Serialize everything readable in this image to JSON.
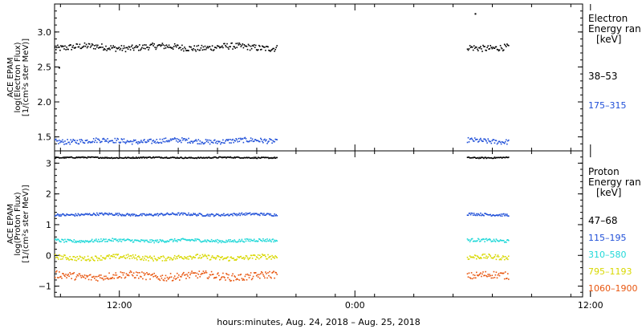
{
  "chart_data": [
    {
      "type": "scatter",
      "panel": "electron",
      "ylabel_lines": [
        "ACE EPAM",
        "log(Electron Flux)",
        "[1/(cm²s ster MeV)]"
      ],
      "ylim": [
        1.3,
        3.4
      ],
      "yticks": [
        1.5,
        2.0,
        2.5,
        3.0
      ],
      "ytick_labels": [
        "1.5",
        "2.0",
        "2.5",
        "3.0"
      ],
      "legend_title_lines": [
        "Electron",
        "Energy ran",
        "[keV]"
      ],
      "series": [
        {
          "name": "38–53",
          "color": "#000000",
          "level": 2.79,
          "spread": 0.045
        },
        {
          "name": "175–315",
          "color": "#1f4fd8",
          "level": 1.45,
          "spread": 0.035
        }
      ],
      "outliers": [
        {
          "x_hours": 8.9,
          "y": 2.5
        },
        {
          "x_hours": 30.1,
          "y": 3.27
        }
      ]
    },
    {
      "type": "scatter",
      "panel": "proton",
      "ylabel_lines": [
        "ACE EPAM",
        "log(Proton Flux)",
        "[1/(cm²s ster MeV)]"
      ],
      "ylim": [
        -1.35,
        3.4
      ],
      "yticks": [
        -1,
        0,
        1,
        2,
        3
      ],
      "ytick_labels": [
        "−1",
        "0",
        "1",
        "2",
        "3"
      ],
      "legend_title_lines": [
        "Proton",
        "Energy ran",
        "[keV]"
      ],
      "series": [
        {
          "name": "47–68",
          "color": "#000000",
          "level": 3.2,
          "spread": 0.02
        },
        {
          "name": "115–195",
          "color": "#1f4fd8",
          "level": 1.35,
          "spread": 0.04
        },
        {
          "name": "310–580",
          "color": "#1fd8d8",
          "level": 0.5,
          "spread": 0.05
        },
        {
          "name": "795–1193",
          "color": "#d8d800",
          "level": -0.05,
          "spread": 0.08
        },
        {
          "name": "1060–1900",
          "color": "#e8560f",
          "level": -0.65,
          "spread": 0.12
        }
      ]
    }
  ],
  "time_axis": {
    "range_hours": [
      8.7,
      35.6
    ],
    "data_segments_hours": [
      [
        8.7,
        20.0
      ],
      [
        29.7,
        31.8
      ]
    ],
    "ticks": [
      {
        "hours": 12,
        "label": "12:00"
      },
      {
        "hours": 24,
        "label": "0:00"
      },
      {
        "hours": 36,
        "label": "12:00"
      }
    ],
    "xlabel": "hours:minutes, Aug. 24, 2018 – Aug. 25, 2018"
  }
}
